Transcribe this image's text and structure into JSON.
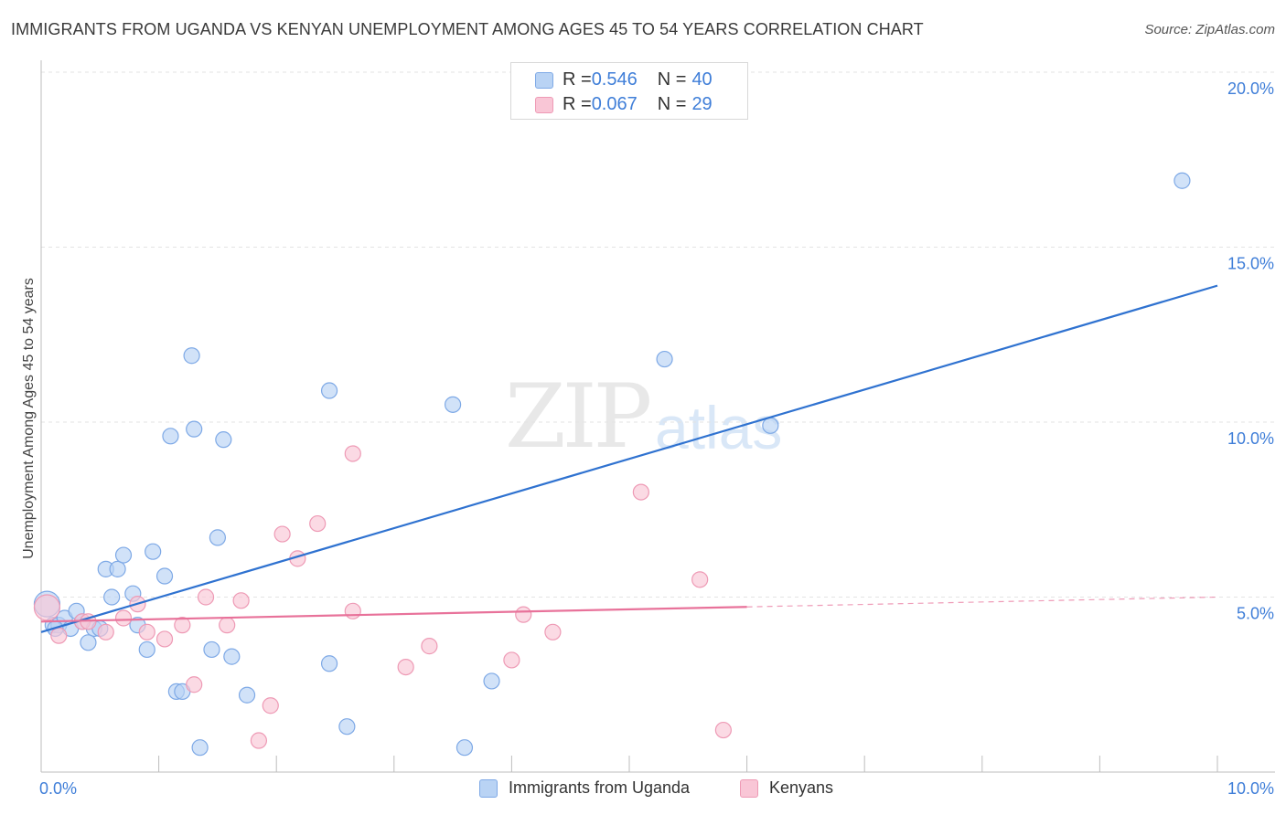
{
  "title": "IMMIGRANTS FROM UGANDA VS KENYAN UNEMPLOYMENT AMONG AGES 45 TO 54 YEARS CORRELATION CHART",
  "source": "Source: ZipAtlas.com",
  "watermark": {
    "zip": "ZIP",
    "atlas": "atlas"
  },
  "colors": {
    "blue_fill": "#b9d3f4",
    "blue_stroke": "#7ea9e6",
    "blue_line": "#2f72d0",
    "pink_fill": "#f9c6d6",
    "pink_stroke": "#ee9ab5",
    "pink_line": "#e8729a",
    "axis_text": "#3f7ed8",
    "grid": "#e3e3e3"
  },
  "legend": {
    "rows": [
      {
        "r_label": "R = ",
        "r_value": "0.546",
        "n_label": "N = ",
        "n_value": "40"
      },
      {
        "r_label": "R = ",
        "r_value": "0.067",
        "n_label": "N = ",
        "n_value": "29"
      }
    ]
  },
  "bottom_legend": {
    "series1": "Immigrants from Uganda",
    "series2": "Kenyans"
  },
  "chart_data": {
    "type": "scatter",
    "title": "IMMIGRANTS FROM UGANDA VS KENYAN UNEMPLOYMENT AMONG AGES 45 TO 54 YEARS CORRELATION CHART",
    "xlabel": "",
    "ylabel": "Unemployment Among Ages 45 to 54 years",
    "xlim": [
      0,
      10
    ],
    "ylim": [
      0,
      20.5
    ],
    "x_ticks": [
      "0.0%",
      "10.0%"
    ],
    "y_ticks": [
      {
        "value": 5,
        "label": "5.0%"
      },
      {
        "value": 10,
        "label": "10.0%"
      },
      {
        "value": 15,
        "label": "15.0%"
      },
      {
        "value": 20,
        "label": "20.0%"
      }
    ],
    "series": [
      {
        "name": "Immigrants from Uganda",
        "R": 0.546,
        "N": 40,
        "trend": {
          "x0": 0.0,
          "y0": 4.0,
          "x1": 10.0,
          "y1": 13.9,
          "solid_until": 10.0
        },
        "points": [
          [
            0.05,
            4.8
          ],
          [
            0.1,
            4.2
          ],
          [
            0.15,
            4.2
          ],
          [
            0.2,
            4.4
          ],
          [
            0.25,
            4.1
          ],
          [
            0.3,
            4.6
          ],
          [
            0.35,
            4.3
          ],
          [
            0.45,
            4.1
          ],
          [
            0.4,
            3.7
          ],
          [
            0.55,
            5.8
          ],
          [
            0.6,
            5.0
          ],
          [
            0.65,
            5.8
          ],
          [
            0.7,
            6.2
          ],
          [
            0.78,
            5.1
          ],
          [
            0.82,
            4.2
          ],
          [
            0.9,
            3.5
          ],
          [
            0.95,
            6.3
          ],
          [
            1.1,
            9.6
          ],
          [
            1.05,
            5.6
          ],
          [
            1.15,
            2.3
          ],
          [
            1.2,
            2.3
          ],
          [
            1.28,
            11.9
          ],
          [
            1.3,
            9.8
          ],
          [
            1.35,
            0.7
          ],
          [
            1.45,
            3.5
          ],
          [
            1.5,
            6.7
          ],
          [
            1.55,
            9.5
          ],
          [
            1.62,
            3.3
          ],
          [
            1.75,
            2.2
          ],
          [
            2.45,
            10.9
          ],
          [
            2.45,
            3.1
          ],
          [
            2.6,
            1.3
          ],
          [
            3.5,
            10.5
          ],
          [
            3.6,
            0.7
          ],
          [
            3.83,
            2.6
          ],
          [
            5.3,
            11.8
          ],
          [
            6.2,
            9.9
          ],
          [
            9.7,
            16.9
          ],
          [
            0.12,
            4.1
          ],
          [
            0.5,
            4.1
          ]
        ]
      },
      {
        "name": "Kenyans",
        "R": 0.067,
        "N": 29,
        "trend": {
          "x0": 0.0,
          "y0": 4.3,
          "x1": 10.0,
          "y1": 5.0,
          "solid_until": 6.0
        },
        "points": [
          [
            0.05,
            4.7
          ],
          [
            0.15,
            3.9
          ],
          [
            0.35,
            4.3
          ],
          [
            0.55,
            4.0
          ],
          [
            0.7,
            4.4
          ],
          [
            0.82,
            4.8
          ],
          [
            0.9,
            4.0
          ],
          [
            1.05,
            3.8
          ],
          [
            1.2,
            4.2
          ],
          [
            1.3,
            2.5
          ],
          [
            1.4,
            5.0
          ],
          [
            1.58,
            4.2
          ],
          [
            1.7,
            4.9
          ],
          [
            1.85,
            0.9
          ],
          [
            1.95,
            1.9
          ],
          [
            2.05,
            6.8
          ],
          [
            2.18,
            6.1
          ],
          [
            2.35,
            7.1
          ],
          [
            2.65,
            9.1
          ],
          [
            2.65,
            4.6
          ],
          [
            3.1,
            3.0
          ],
          [
            3.3,
            3.6
          ],
          [
            4.0,
            3.2
          ],
          [
            4.1,
            4.5
          ],
          [
            4.35,
            4.0
          ],
          [
            5.1,
            8.0
          ],
          [
            5.6,
            5.5
          ],
          [
            5.8,
            1.2
          ],
          [
            0.4,
            4.3
          ]
        ]
      }
    ]
  }
}
